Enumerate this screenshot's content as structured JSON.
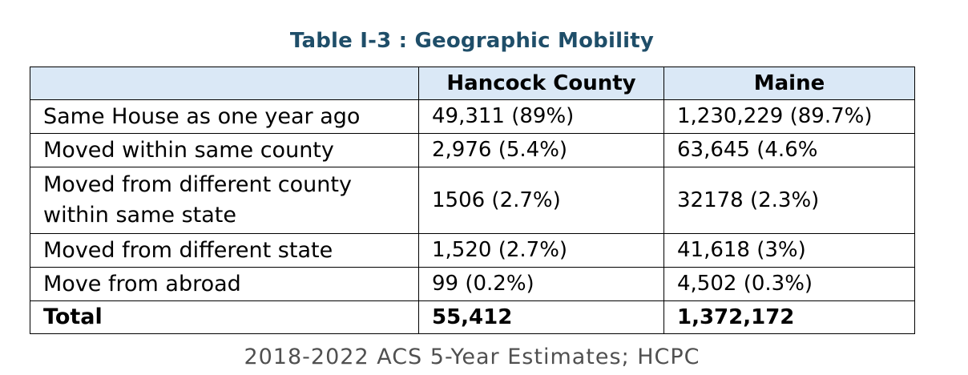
{
  "title": "Table I-3 : Geographic Mobility",
  "table": {
    "headers": [
      "",
      "Hancock County",
      "Maine"
    ],
    "rows": [
      {
        "label": "Same House as one year ago",
        "hancock": "49,311 (89%)",
        "maine": "1,230,229 (89.7%)"
      },
      {
        "label": "Moved within same county",
        "hancock": "2,976 (5.4%)",
        "maine": "63,645 (4.6%"
      },
      {
        "label": "Moved from different county within same state",
        "hancock": "1506 (2.7%)",
        "maine": "32178 (2.3%)"
      },
      {
        "label": "Moved from different state",
        "hancock": "1,520 (2.7%)",
        "maine": "41,618 (3%)"
      },
      {
        "label": "Move from abroad",
        "hancock": "99 (0.2%)",
        "maine": "4,502 (0.3%)"
      }
    ],
    "total": {
      "label": "Total",
      "hancock": "55,412",
      "maine": "1,372,172"
    }
  },
  "source": "2018-2022 ACS 5-Year Estimates; HCPC"
}
